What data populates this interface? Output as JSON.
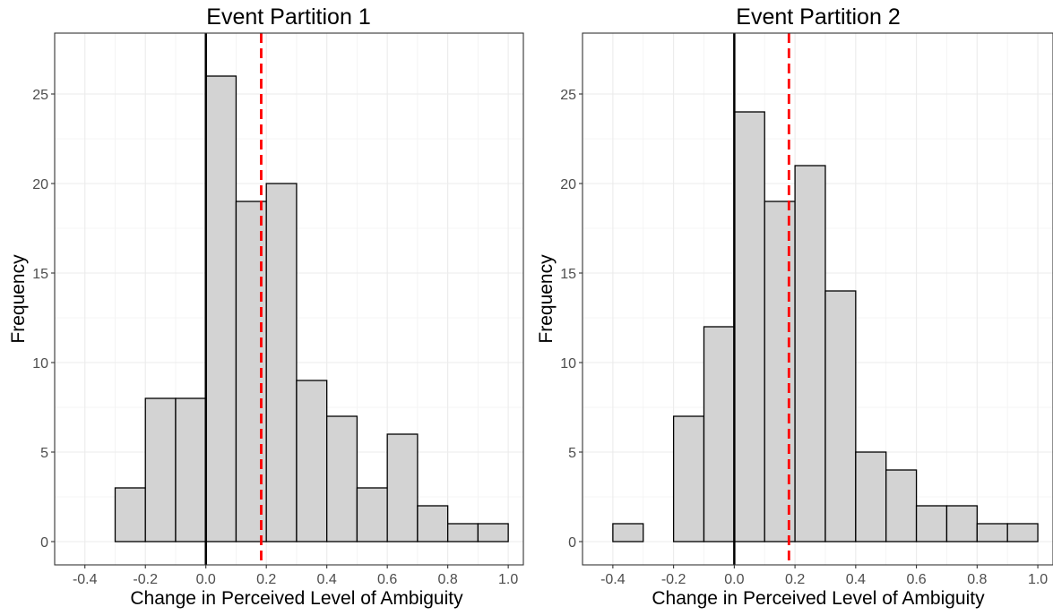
{
  "chart_data": [
    {
      "type": "bar",
      "title": "Event Partition 1",
      "xlabel": "Change in Perceived Level of Ambiguity",
      "ylabel": "Frequency",
      "xlim": [
        -0.5,
        1.05
      ],
      "ylim": [
        -1.3,
        28.4
      ],
      "x_ticks": [
        -0.4,
        -0.2,
        0.0,
        0.2,
        0.4,
        0.6,
        0.8,
        1.0
      ],
      "x_tick_labels": [
        "-0.4",
        "-0.2",
        "0.0",
        "0.2",
        "0.4",
        "0.6",
        "0.8",
        "1.0"
      ],
      "y_ticks": [
        0,
        5,
        10,
        15,
        20,
        25
      ],
      "y_tick_labels": [
        "0",
        "5",
        "10",
        "15",
        "20",
        "25"
      ],
      "bin_width": 0.1,
      "bins_start": [
        -0.4,
        -0.3,
        -0.2,
        -0.1,
        0.0,
        0.1,
        0.2,
        0.3,
        0.4,
        0.5,
        0.6,
        0.7,
        0.8,
        0.9
      ],
      "values": [
        0,
        3,
        8,
        8,
        26,
        19,
        20,
        9,
        7,
        3,
        6,
        2,
        1,
        1
      ],
      "zero_line": 0.0,
      "mean_line": 0.183,
      "grid": true,
      "colors": {
        "bar_fill": "#d3d3d3",
        "bar_stroke": "#000000",
        "mean_line": "#ff0000",
        "zero_line": "#000000"
      }
    },
    {
      "type": "bar",
      "title": "Event Partition 2",
      "xlabel": "Change in Perceived Level of Ambiguity",
      "ylabel": "Frequency",
      "xlim": [
        -0.5,
        1.05
      ],
      "ylim": [
        -1.3,
        28.4
      ],
      "x_ticks": [
        -0.4,
        -0.2,
        0.0,
        0.2,
        0.4,
        0.6,
        0.8,
        1.0
      ],
      "x_tick_labels": [
        "-0.4",
        "-0.2",
        "0.0",
        "0.2",
        "0.4",
        "0.6",
        "0.8",
        "1.0"
      ],
      "y_ticks": [
        0,
        5,
        10,
        15,
        20,
        25
      ],
      "y_tick_labels": [
        "0",
        "5",
        "10",
        "15",
        "20",
        "25"
      ],
      "bin_width": 0.1,
      "bins_start": [
        -0.4,
        -0.3,
        -0.2,
        -0.1,
        0.0,
        0.1,
        0.2,
        0.3,
        0.4,
        0.5,
        0.6,
        0.7,
        0.8,
        0.9
      ],
      "values": [
        1,
        0,
        7,
        12,
        24,
        19,
        21,
        14,
        5,
        4,
        2,
        2,
        1,
        1
      ],
      "zero_line": 0.0,
      "mean_line": 0.18,
      "grid": true,
      "colors": {
        "bar_fill": "#d3d3d3",
        "bar_stroke": "#000000",
        "mean_line": "#ff0000",
        "zero_line": "#000000"
      }
    }
  ]
}
